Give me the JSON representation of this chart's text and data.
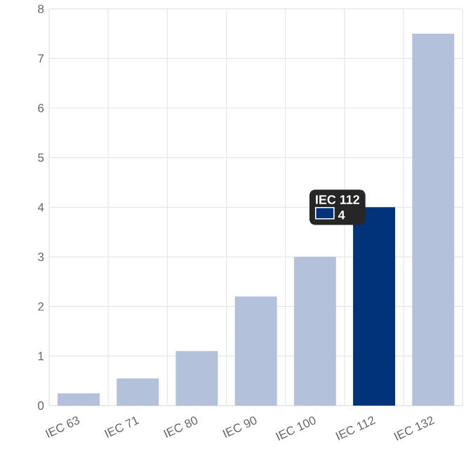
{
  "chart_data": {
    "type": "bar",
    "categories": [
      "IEC 63",
      "IEC 71",
      "IEC 80",
      "IEC 90",
      "IEC 100",
      "IEC 112",
      "IEC 132"
    ],
    "values": [
      0.25,
      0.55,
      1.1,
      2.2,
      3,
      4,
      7.5
    ],
    "colors": [
      "#b3c2da",
      "#b3c2da",
      "#b3c2da",
      "#b3c2da",
      "#b3c2da",
      "#00337a",
      "#b3c2da"
    ],
    "ylim": [
      0,
      8
    ],
    "yticks": [
      0,
      1,
      2,
      3,
      4,
      5,
      6,
      7,
      8
    ],
    "grid": true,
    "annotations": [
      {
        "text": "IEC 112",
        "x": "IEC 112",
        "y": 4
      },
      {
        "text": "4",
        "x": "IEC 112",
        "y": 4
      }
    ]
  }
}
